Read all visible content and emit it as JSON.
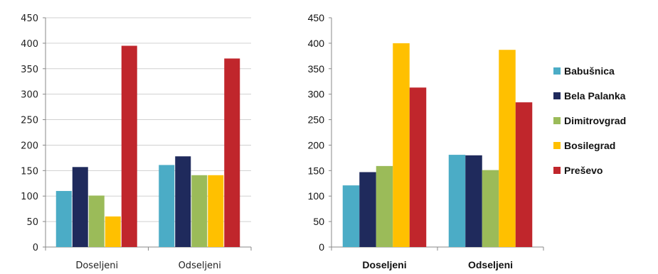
{
  "chart_data": [
    {
      "type": "bar",
      "categories": [
        "Doseljeni",
        "Odseljeni"
      ],
      "series": [
        {
          "values": [
            110,
            161
          ],
          "color": "#4bacc6"
        },
        {
          "values": [
            157,
            178
          ],
          "color": "#1f2a5c"
        },
        {
          "values": [
            101,
            141
          ],
          "color": "#9bbb59"
        },
        {
          "values": [
            60,
            141
          ],
          "color": "#ffc000"
        },
        {
          "values": [
            395,
            370
          ],
          "color": "#c0262c"
        }
      ],
      "ylim": [
        0,
        450
      ],
      "yticks": [
        "0",
        "50",
        "100",
        "150",
        "200",
        "250",
        "300",
        "350",
        "400",
        "450"
      ],
      "grid": true,
      "legend": "none"
    },
    {
      "type": "bar",
      "categories": [
        "Doseljeni",
        "Odseljeni"
      ],
      "series": [
        {
          "name": "Babušnica",
          "values": [
            121,
            181
          ],
          "color": "#4bacc6"
        },
        {
          "name": "Bela Palanka",
          "values": [
            147,
            180
          ],
          "color": "#1f2a5c"
        },
        {
          "name": "Dimitrovgrad",
          "values": [
            159,
            151
          ],
          "color": "#9bbb59"
        },
        {
          "name": "Bosilegrad",
          "values": [
            400,
            387
          ],
          "color": "#ffc000"
        },
        {
          "name": "Preševo",
          "values": [
            313,
            284
          ],
          "color": "#c0262c"
        }
      ],
      "ylim": [
        0,
        450
      ],
      "yticks": [
        "0",
        "50",
        "100",
        "150",
        "200",
        "250",
        "300",
        "350",
        "400",
        "450"
      ],
      "grid": false,
      "legend": "right"
    }
  ]
}
